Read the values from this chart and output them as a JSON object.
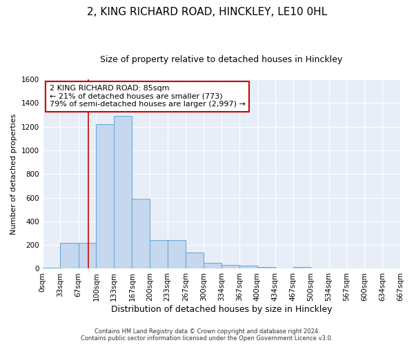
{
  "title": "2, KING RICHARD ROAD, HINCKLEY, LE10 0HL",
  "subtitle": "Size of property relative to detached houses in Hinckley",
  "xlabel": "Distribution of detached houses by size in Hinckley",
  "ylabel": "Number of detached properties",
  "bar_color": "#c5d8ee",
  "bar_edge_color": "#6aaad4",
  "background_color": "#e8eef8",
  "grid_color": "#ffffff",
  "bin_edges": [
    0,
    33,
    67,
    100,
    133,
    167,
    200,
    233,
    267,
    300,
    334,
    367,
    400,
    434,
    467,
    500,
    534,
    567,
    600,
    634,
    667
  ],
  "bar_heights": [
    10,
    220,
    220,
    1220,
    1290,
    590,
    240,
    240,
    135,
    50,
    30,
    25,
    15,
    0,
    15,
    0,
    0,
    0,
    0,
    0
  ],
  "tick_labels": [
    "0sqm",
    "33sqm",
    "67sqm",
    "100sqm",
    "133sqm",
    "167sqm",
    "200sqm",
    "233sqm",
    "267sqm",
    "300sqm",
    "334sqm",
    "367sqm",
    "400sqm",
    "434sqm",
    "467sqm",
    "500sqm",
    "534sqm",
    "567sqm",
    "600sqm",
    "634sqm",
    "667sqm"
  ],
  "ylim": [
    0,
    1600
  ],
  "yticks": [
    0,
    200,
    400,
    600,
    800,
    1000,
    1200,
    1400,
    1600
  ],
  "property_size": 85,
  "red_line_color": "#cc0000",
  "annotation_text": "2 KING RICHARD ROAD: 85sqm\n← 21% of detached houses are smaller (773)\n79% of semi-detached houses are larger (2,997) →",
  "annotation_box_color": "#cc0000",
  "footer_line1": "Contains HM Land Registry data © Crown copyright and database right 2024.",
  "footer_line2": "Contains public sector information licensed under the Open Government Licence v3.0.",
  "title_fontsize": 11,
  "subtitle_fontsize": 9,
  "ylabel_fontsize": 8,
  "xlabel_fontsize": 9,
  "tick_fontsize": 7.5,
  "annot_fontsize": 8
}
